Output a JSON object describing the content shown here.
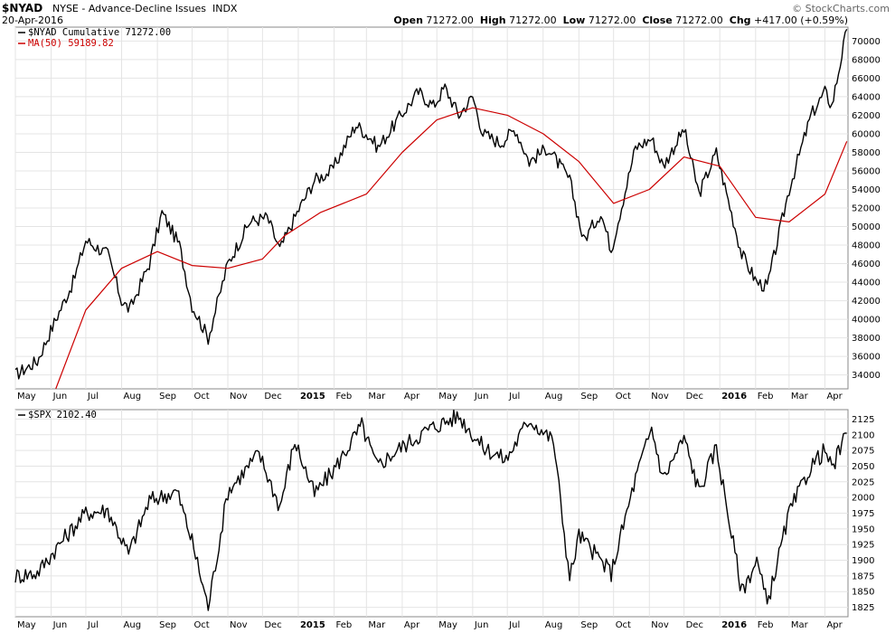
{
  "header": {
    "symbol": "$NYAD",
    "title": "NYSE - Advance-Decline Issues",
    "exchange": "INDX",
    "date": "20-Apr-2016",
    "brand": "© StockCharts.com",
    "open_label": "Open",
    "open": "71272.00",
    "high_label": "High",
    "high": "71272.00",
    "low_label": "Low",
    "low": "71272.00",
    "close_label": "Close",
    "close": "71272.00",
    "chg_label": "Chg",
    "chg": "+417.00 (+0.59%)"
  },
  "colors": {
    "price": "#000000",
    "ma": "#cc0000",
    "grid": "#e4e4e4",
    "border": "#888888"
  },
  "chart_data": [
    {
      "type": "line",
      "panel": "top",
      "series": [
        {
          "name": "$NYAD Cumulative 71272.00",
          "x": [
            "2014-05-01",
            "2014-05-20",
            "2014-06-05",
            "2014-06-20",
            "2014-07-01",
            "2014-07-20",
            "2014-08-01",
            "2014-08-08",
            "2014-08-25",
            "2014-09-05",
            "2014-09-20",
            "2014-10-01",
            "2014-10-15",
            "2014-11-01",
            "2014-11-20",
            "2014-12-05",
            "2014-12-16",
            "2014-12-31",
            "2015-01-15",
            "2015-01-30",
            "2015-02-20",
            "2015-03-05",
            "2015-03-11",
            "2015-03-31",
            "2015-04-15",
            "2015-04-28",
            "2015-05-08",
            "2015-05-20",
            "2015-06-01",
            "2015-06-10",
            "2015-06-25",
            "2015-07-08",
            "2015-07-20",
            "2015-08-05",
            "2015-08-24",
            "2015-09-05",
            "2015-09-20",
            "2015-09-29",
            "2015-10-20",
            "2015-11-03",
            "2015-11-13",
            "2015-12-01",
            "2015-12-14",
            "2015-12-29",
            "2016-01-20",
            "2016-02-02",
            "2016-02-11",
            "2016-03-01",
            "2016-03-20",
            "2016-04-01",
            "2016-04-07",
            "2016-04-20"
          ],
          "values": [
            34000,
            35500,
            40000,
            44000,
            48500,
            47000,
            42000,
            41000,
            46000,
            51500,
            48000,
            41500,
            38000,
            46000,
            50500,
            51000,
            47500,
            51500,
            55000,
            56000,
            61000,
            59500,
            58500,
            62000,
            64500,
            63000,
            65000,
            62000,
            64000,
            60000,
            59000,
            60500,
            57000,
            58500,
            55000,
            48500,
            51500,
            47500,
            58500,
            59500,
            56500,
            60500,
            53500,
            58000,
            47000,
            44000,
            43500,
            54000,
            62000,
            64500,
            63000,
            71272
          ]
        },
        {
          "name": "MA(50) 59189.82",
          "x": [
            "2014-06-05",
            "2014-07-01",
            "2014-08-01",
            "2014-09-01",
            "2014-10-01",
            "2014-11-01",
            "2014-12-01",
            "2014-12-20",
            "2015-01-20",
            "2015-03-01",
            "2015-04-01",
            "2015-05-01",
            "2015-06-01",
            "2015-07-01",
            "2015-08-01",
            "2015-09-01",
            "2015-10-01",
            "2015-11-01",
            "2015-12-01",
            "2016-01-01",
            "2016-02-01",
            "2016-03-01",
            "2016-04-01",
            "2016-04-20"
          ],
          "values": [
            32500,
            41000,
            45500,
            47300,
            45800,
            45500,
            46500,
            49000,
            51500,
            53500,
            58000,
            61500,
            62800,
            62000,
            60000,
            57000,
            52500,
            54000,
            57500,
            56500,
            51000,
            50500,
            53500,
            59189.82
          ]
        }
      ],
      "ylim": [
        32500,
        71500
      ],
      "yticks": [
        34000,
        36000,
        38000,
        40000,
        42000,
        44000,
        46000,
        48000,
        50000,
        52000,
        54000,
        56000,
        58000,
        60000,
        62000,
        64000,
        66000,
        68000,
        70000
      ],
      "xtick_labels": [
        "May",
        "Jun",
        "Jul",
        "Aug",
        "Sep",
        "Oct",
        "Nov",
        "Dec",
        "2015",
        "Feb",
        "Mar",
        "Apr",
        "May",
        "Jun",
        "Jul",
        "Aug",
        "Sep",
        "Oct",
        "Nov",
        "Dec",
        "2016",
        "Feb",
        "Mar",
        "Apr"
      ],
      "grid": true,
      "legend": "top-left"
    },
    {
      "type": "line",
      "panel": "bottom",
      "series": [
        {
          "name": "$SPX 2102.40",
          "x": [
            "2014-05-01",
            "2014-05-20",
            "2014-06-10",
            "2014-07-01",
            "2014-07-20",
            "2014-08-07",
            "2014-08-25",
            "2014-09-18",
            "2014-10-01",
            "2014-10-15",
            "2014-11-01",
            "2014-11-28",
            "2014-12-16",
            "2014-12-29",
            "2015-01-15",
            "2015-02-01",
            "2015-02-25",
            "2015-03-10",
            "2015-03-31",
            "2015-04-25",
            "2015-05-20",
            "2015-06-10",
            "2015-06-30",
            "2015-07-20",
            "2015-08-10",
            "2015-08-24",
            "2015-09-01",
            "2015-09-29",
            "2015-10-20",
            "2015-11-03",
            "2015-11-13",
            "2015-12-01",
            "2015-12-14",
            "2015-12-29",
            "2016-01-20",
            "2016-02-02",
            "2016-02-11",
            "2016-03-01",
            "2016-03-20",
            "2016-04-01",
            "2016-04-07",
            "2016-04-20"
          ],
          "values": [
            1875,
            1880,
            1930,
            1975,
            1980,
            1910,
            1995,
            2010,
            1930,
            1825,
            2010,
            2070,
            1985,
            2090,
            2005,
            2045,
            2115,
            2050,
            2080,
            2110,
            2130,
            2080,
            2060,
            2125,
            2090,
            1870,
            1940,
            1880,
            2030,
            2110,
            2030,
            2095,
            2010,
            2080,
            1850,
            1900,
            1830,
            1975,
            2050,
            2075,
            2045,
            2102.4
          ]
        }
      ],
      "ylim": [
        1810,
        2140
      ],
      "yticks": [
        1825,
        1850,
        1875,
        1900,
        1925,
        1950,
        1975,
        2000,
        2025,
        2050,
        2075,
        2100,
        2125
      ],
      "xtick_labels": [
        "May",
        "Jun",
        "Jul",
        "Aug",
        "Sep",
        "Oct",
        "Nov",
        "Dec",
        "2015",
        "Feb",
        "Mar",
        "Apr",
        "May",
        "Jun",
        "Jul",
        "Aug",
        "Sep",
        "Oct",
        "Nov",
        "Dec",
        "2016",
        "Feb",
        "Mar",
        "Apr"
      ],
      "grid": true,
      "legend": "top-left"
    }
  ]
}
